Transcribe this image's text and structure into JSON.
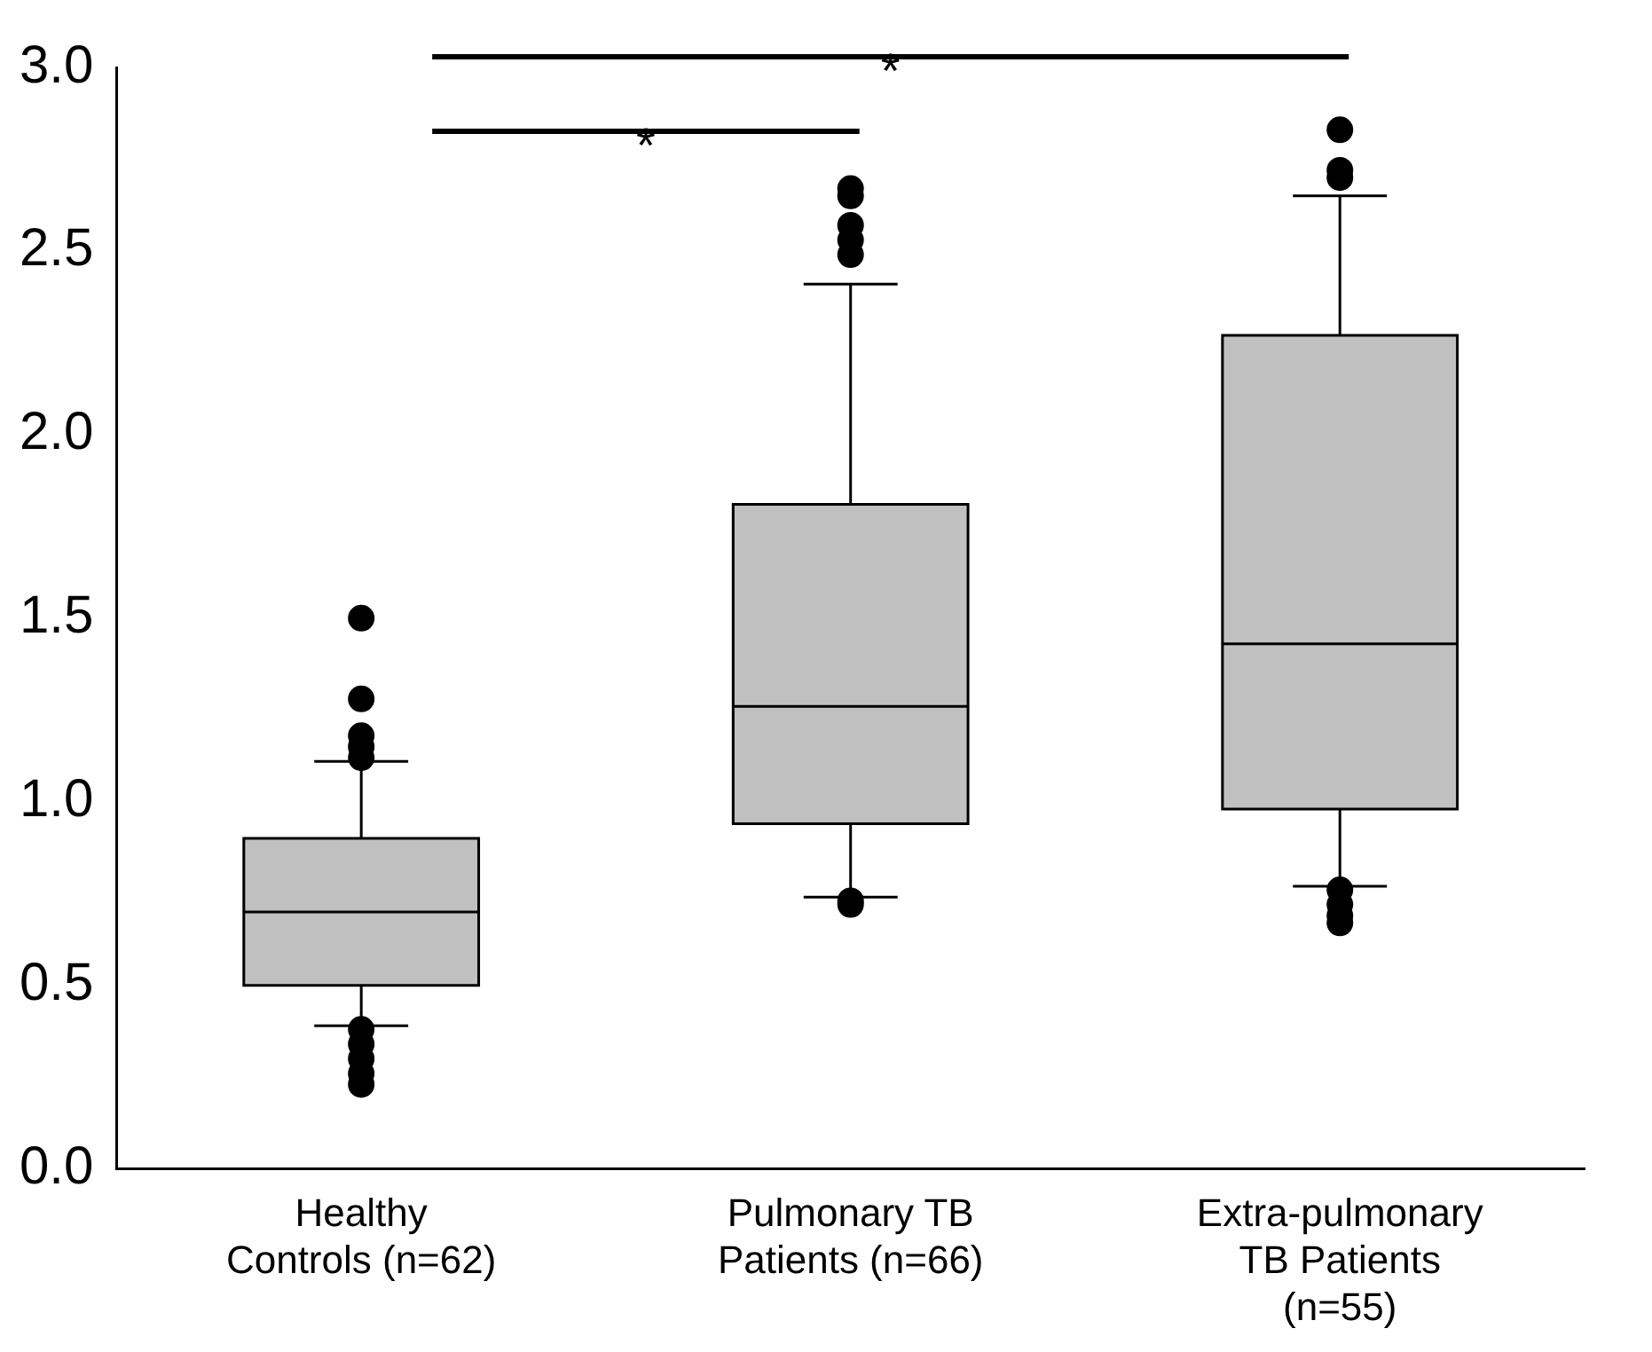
{
  "chart_data": {
    "type": "box",
    "categories": [
      "Healthy Controls (n=62)",
      "Pulmonary TB Patients (n=66)",
      "Extra-pulmonary TB Patients (n=55)"
    ],
    "boxes": [
      {
        "low": 0.39,
        "q1": 0.5,
        "median": 0.7,
        "q3": 0.9,
        "high": 1.11,
        "outliers": [
          1.5,
          1.28,
          1.18,
          1.15,
          1.12,
          0.38,
          0.34,
          0.3,
          0.26,
          0.23
        ]
      },
      {
        "low": 0.74,
        "q1": 0.94,
        "median": 1.26,
        "q3": 1.81,
        "high": 2.41,
        "outliers": [
          2.67,
          2.65,
          2.57,
          2.53,
          2.49,
          0.73,
          0.72
        ]
      },
      {
        "low": 0.77,
        "q1": 0.98,
        "median": 1.43,
        "q3": 2.27,
        "high": 2.65,
        "outliers": [
          2.83,
          2.72,
          2.7,
          0.76,
          0.72,
          0.69,
          0.67
        ]
      }
    ],
    "color": "#c0c0c0",
    "ylim": [
      0,
      3
    ],
    "yticks": [
      {
        "value": 0,
        "label": "0.0"
      },
      {
        "value": 0.5,
        "label": "0.5"
      },
      {
        "value": 1,
        "label": "1.0"
      },
      {
        "value": 1.5,
        "label": "1.5"
      },
      {
        "value": 2,
        "label": "2.0"
      },
      {
        "value": 2.5,
        "label": "2.5"
      },
      {
        "value": 3,
        "label": "3.0"
      }
    ],
    "annotations": [
      "*",
      "*"
    ],
    "grid": false,
    "legend": false
  }
}
